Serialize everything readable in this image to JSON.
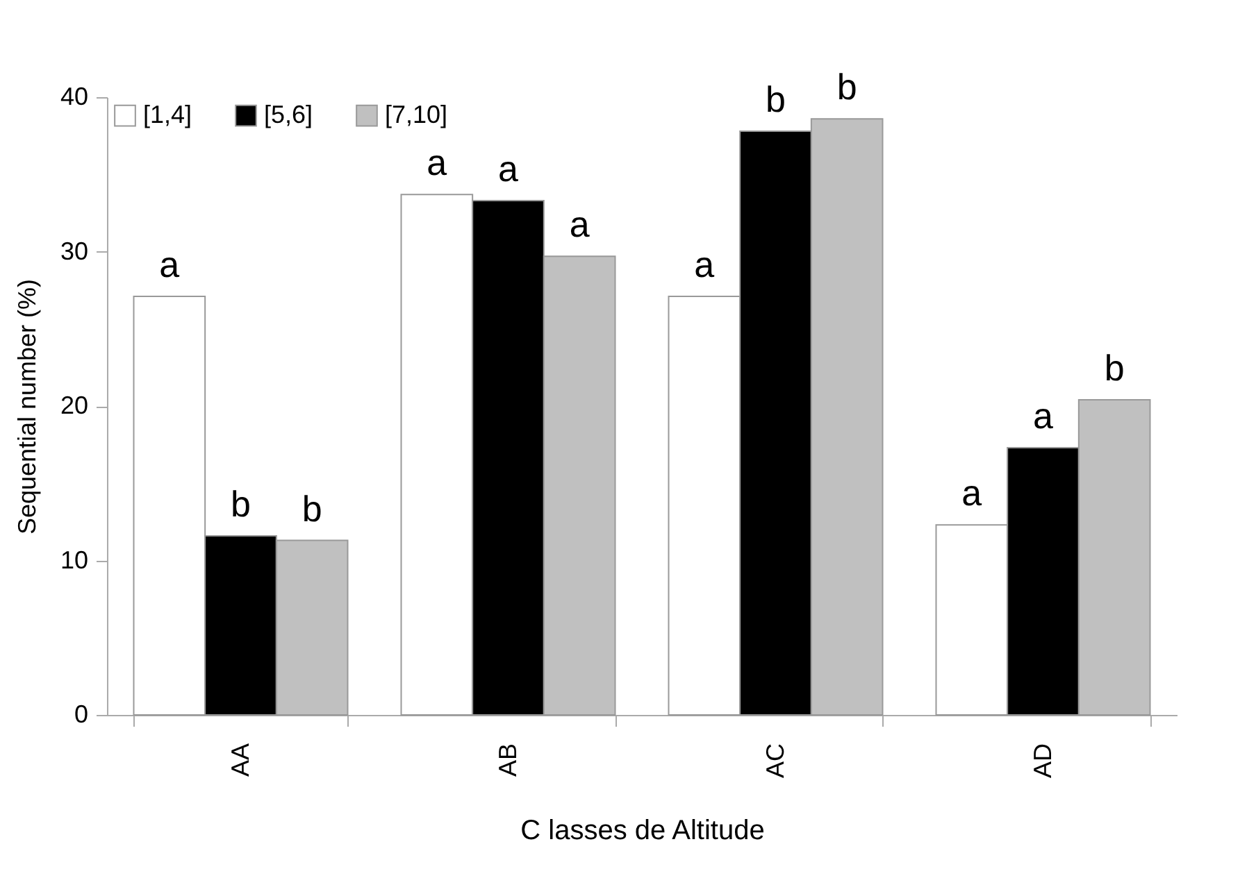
{
  "chart_data": {
    "type": "bar",
    "xlabel": "C lasses de Altitude",
    "ylabel": "Sequential number (%)",
    "categories": [
      "AA",
      "AB",
      "AC",
      "AD"
    ],
    "series": [
      {
        "name": "[1,4]",
        "color": "#ffffff",
        "values": [
          27.1,
          33.7,
          27.1,
          12.3
        ],
        "value_labels": [
          "a",
          "a",
          "a",
          "a"
        ]
      },
      {
        "name": "[5,6]",
        "color": "#000000",
        "values": [
          11.6,
          33.3,
          37.8,
          17.3
        ],
        "value_labels": [
          "b",
          "a",
          "b",
          "a"
        ]
      },
      {
        "name": "[7,10]",
        "color": "#c0c0c0",
        "values": [
          11.3,
          29.7,
          38.6,
          20.4
        ],
        "value_labels": [
          "b",
          "a",
          "b",
          "b"
        ]
      }
    ],
    "ylim": [
      0,
      40
    ],
    "yticks": [
      0,
      10,
      20,
      30,
      40
    ],
    "grid": false,
    "legend": "top left"
  }
}
